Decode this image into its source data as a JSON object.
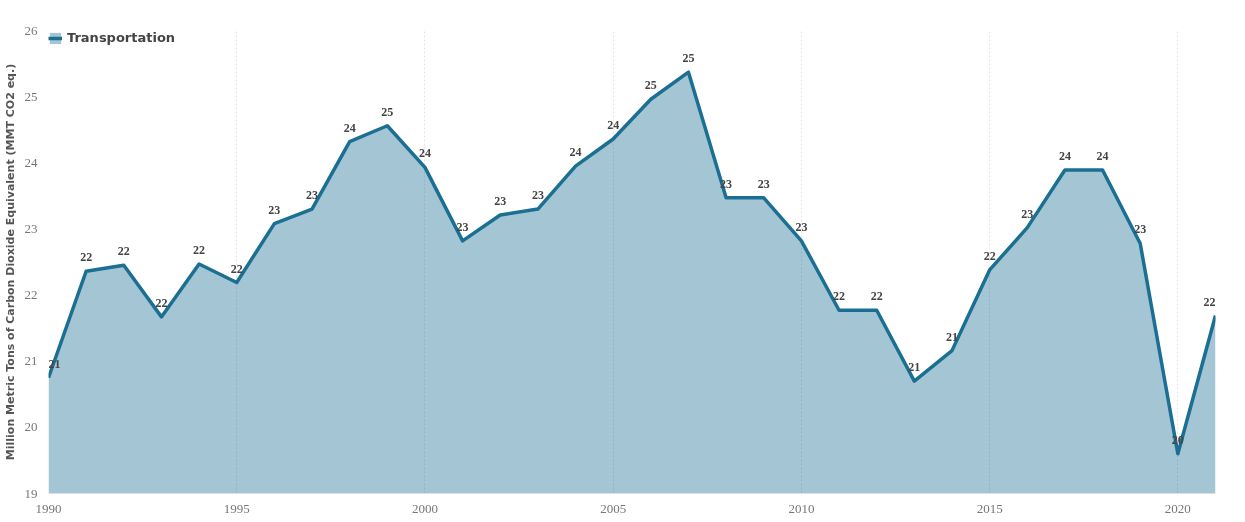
{
  "chart_data": {
    "type": "area",
    "ylabel": "Million Metric Tons of Carbon Dioxide Equivalent (MMT CO2 eq.)",
    "x": [
      1990,
      1991,
      1992,
      1993,
      1994,
      1995,
      1996,
      1997,
      1998,
      1999,
      2000,
      2001,
      2002,
      2003,
      2004,
      2005,
      2006,
      2007,
      2008,
      2009,
      2010,
      2011,
      2012,
      2013,
      2014,
      2015,
      2016,
      2017,
      2018,
      2019,
      2020,
      2021
    ],
    "series": [
      {
        "name": "Transportation",
        "color": "#1b6f93",
        "values": [
          20.75,
          22.36,
          22.45,
          21.67,
          22.47,
          22.19,
          23.08,
          23.3,
          24.32,
          24.56,
          23.93,
          22.82,
          23.21,
          23.3,
          23.95,
          24.36,
          24.96,
          25.37,
          23.47,
          23.47,
          22.82,
          21.77,
          21.77,
          20.7,
          21.16,
          22.38,
          23.02,
          23.89,
          23.89,
          22.78,
          19.6,
          21.69
        ],
        "value_labels": [
          "21",
          "22",
          "22",
          "22",
          "22",
          "22",
          "23",
          "23",
          "24",
          "25",
          "24",
          "23",
          "23",
          "23",
          "24",
          "24",
          "25",
          "25",
          "23",
          "23",
          "23",
          "22",
          "22",
          "21",
          "21",
          "22",
          "23",
          "24",
          "24",
          "23",
          "20",
          "22"
        ]
      }
    ],
    "xlim": [
      1990,
      2021
    ],
    "xticks": [
      1990,
      1995,
      2000,
      2005,
      2010,
      2015,
      2020
    ],
    "ylim": [
      19,
      26
    ],
    "yticks": [
      19,
      20,
      21,
      22,
      23,
      24,
      25,
      26
    ],
    "grid": "x",
    "legend": "top left"
  }
}
